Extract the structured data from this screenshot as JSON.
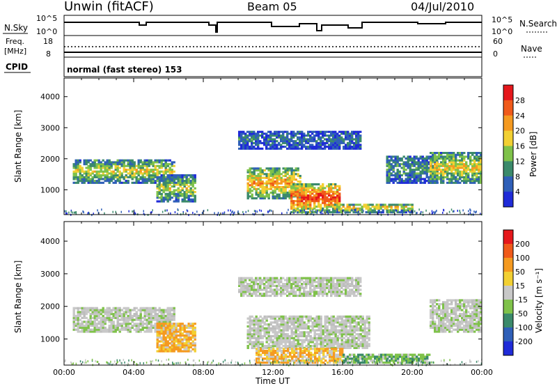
{
  "header": {
    "station": "Unwin (fitACF)",
    "beam": "Beam 05",
    "date": "04/Jul/2010"
  },
  "status_panel": {
    "nsky_label": "N.Sky",
    "nsearch_label": "N.Search",
    "nsky_ticks": [
      "10^5",
      "10^0"
    ],
    "nsearch_ticks": [
      "10^5",
      "10^0"
    ],
    "freq_label": "Freq.",
    "freq_unit": "[MHz]",
    "freq_ticks": [
      "18",
      "8"
    ],
    "nave_label": "Nave",
    "nave_ticks": [
      "60",
      "0"
    ],
    "cpid_label": "CPID",
    "cpid_text": "normal (fast stereo) 153"
  },
  "chart_data": [
    {
      "type": "heatmap",
      "panel": "power",
      "ylabel": "Slant Range [km]",
      "yticks": [
        "4000",
        "3000",
        "2000",
        "1000"
      ],
      "ylim": [
        200,
        4600
      ],
      "xlim_hours": [
        0,
        24
      ],
      "colorbar": {
        "label": "Power [dB]",
        "ticks": [
          "28",
          "24",
          "20",
          "16",
          "12",
          "8",
          "4"
        ],
        "colors": [
          "#1f2bd8",
          "#2f5fb8",
          "#3b8a6b",
          "#7fc24a",
          "#f2d033",
          "#f59a20",
          "#f05a1a",
          "#e5171b"
        ]
      },
      "regions": [
        {
          "t0": 0.5,
          "t1": 6.3,
          "r0": 1200,
          "r1": 1950,
          "level": 0.55
        },
        {
          "t0": 5.3,
          "t1": 7.5,
          "r0": 600,
          "r1": 1450,
          "level": 0.5
        },
        {
          "t0": 10.5,
          "t1": 13.5,
          "r0": 700,
          "r1": 1700,
          "level": 0.7
        },
        {
          "t0": 13.0,
          "t1": 15.8,
          "r0": 250,
          "r1": 1200,
          "level": 0.9
        },
        {
          "t0": 15.5,
          "t1": 20.0,
          "r0": 250,
          "r1": 550,
          "level": 0.6
        },
        {
          "t0": 10.0,
          "t1": 17.0,
          "r0": 2300,
          "r1": 2900,
          "level": 0.25
        },
        {
          "t0": 18.5,
          "t1": 21.5,
          "r0": 1200,
          "r1": 2100,
          "level": 0.35
        },
        {
          "t0": 21.0,
          "t1": 24.0,
          "r0": 1200,
          "r1": 2200,
          "level": 0.6
        }
      ]
    },
    {
      "type": "heatmap",
      "panel": "velocity",
      "ylabel": "Slant Range [km]",
      "yticks": [
        "4000",
        "3000",
        "2000",
        "1000"
      ],
      "ylim": [
        200,
        4600
      ],
      "xlim_hours": [
        0,
        24
      ],
      "xlabel": "Time UT",
      "xticks": [
        "00:00",
        "04:00",
        "08:00",
        "12:00",
        "16:00",
        "20:00",
        "00:00"
      ],
      "colorbar": {
        "label": "Velocity [m s⁻¹]",
        "ticks": [
          "200",
          "100",
          "50",
          "15",
          "-15",
          "-50",
          "-100",
          "-200"
        ],
        "colors": [
          "#1f2bd8",
          "#2f5fb8",
          "#3b8a6b",
          "#7fc24a",
          "#c8c8c8",
          "#f2d033",
          "#f59a20",
          "#f05a1a",
          "#e5171b"
        ]
      },
      "regions": [
        {
          "t0": 0.5,
          "t1": 6.3,
          "r0": 1200,
          "r1": 1950,
          "tone": "gray"
        },
        {
          "t0": 5.3,
          "t1": 7.5,
          "r0": 600,
          "r1": 1450,
          "tone": "orange"
        },
        {
          "t0": 10.5,
          "t1": 17.5,
          "r0": 700,
          "r1": 1700,
          "tone": "gray"
        },
        {
          "t0": 11.0,
          "t1": 16.0,
          "r0": 250,
          "r1": 700,
          "tone": "orange"
        },
        {
          "t0": 16.0,
          "t1": 21.0,
          "r0": 250,
          "r1": 550,
          "tone": "green"
        },
        {
          "t0": 10.0,
          "t1": 17.0,
          "r0": 2300,
          "r1": 2900,
          "tone": "gray"
        },
        {
          "t0": 21.0,
          "t1": 24.0,
          "r0": 1200,
          "r1": 2200,
          "tone": "gray"
        }
      ]
    }
  ]
}
